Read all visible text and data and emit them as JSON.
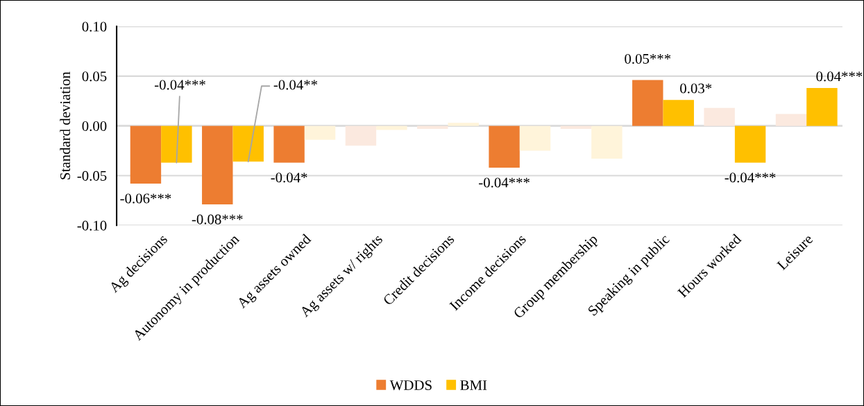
{
  "chart_data": {
    "type": "bar",
    "ylabel": "Standard deviation",
    "categories": [
      "Ag decisions",
      "Autonomy in production",
      "Ag assets owned",
      "Ag assets w/ rights",
      "Credit decisions",
      "Income decisions",
      "Group membership",
      "Speaking in public",
      "Hours worked",
      "Leisure"
    ],
    "series": [
      {
        "name": "WDDS",
        "color": "#ed7d31",
        "colors": [
          "#ed7d31",
          "#ed7d31",
          "#ed7d31",
          "#fbe9df",
          "#fbe9df",
          "#ed7d31",
          "#fbe9df",
          "#ed7d31",
          "#fbe9df",
          "#fbe9df"
        ],
        "values": [
          -0.058,
          -0.079,
          -0.037,
          -0.02,
          -0.003,
          -0.042,
          -0.003,
          0.046,
          0.018,
          0.012
        ],
        "value_labels": [
          "-0.06***",
          "-0.08***",
          "-0.04*",
          null,
          null,
          "-0.04***",
          null,
          "0.05***",
          null,
          null
        ]
      },
      {
        "name": "BMI",
        "color": "#ffc000",
        "colors": [
          "#ffc000",
          "#ffc000",
          "#fff4da",
          "#fff4da",
          "#fff4da",
          "#fff4da",
          "#fff4da",
          "#ffc000",
          "#ffc000",
          "#ffc000"
        ],
        "values": [
          -0.037,
          -0.036,
          -0.014,
          -0.004,
          0.003,
          -0.025,
          -0.033,
          0.026,
          -0.037,
          0.038
        ],
        "value_labels": [
          "-0.04***",
          "-0.04**",
          null,
          null,
          null,
          null,
          null,
          "0.03*",
          "-0.04***",
          "0.04***"
        ]
      }
    ],
    "ylim": [
      -0.1,
      0.1
    ],
    "yticks": [
      {
        "value": -0.1,
        "label": "-0.10"
      },
      {
        "value": -0.05,
        "label": "-0.05"
      },
      {
        "value": 0,
        "label": "0.00"
      },
      {
        "value": 0.05,
        "label": "0.05"
      },
      {
        "value": 0.1,
        "label": "0.10"
      }
    ],
    "grid": "y",
    "legend": "bottom"
  }
}
